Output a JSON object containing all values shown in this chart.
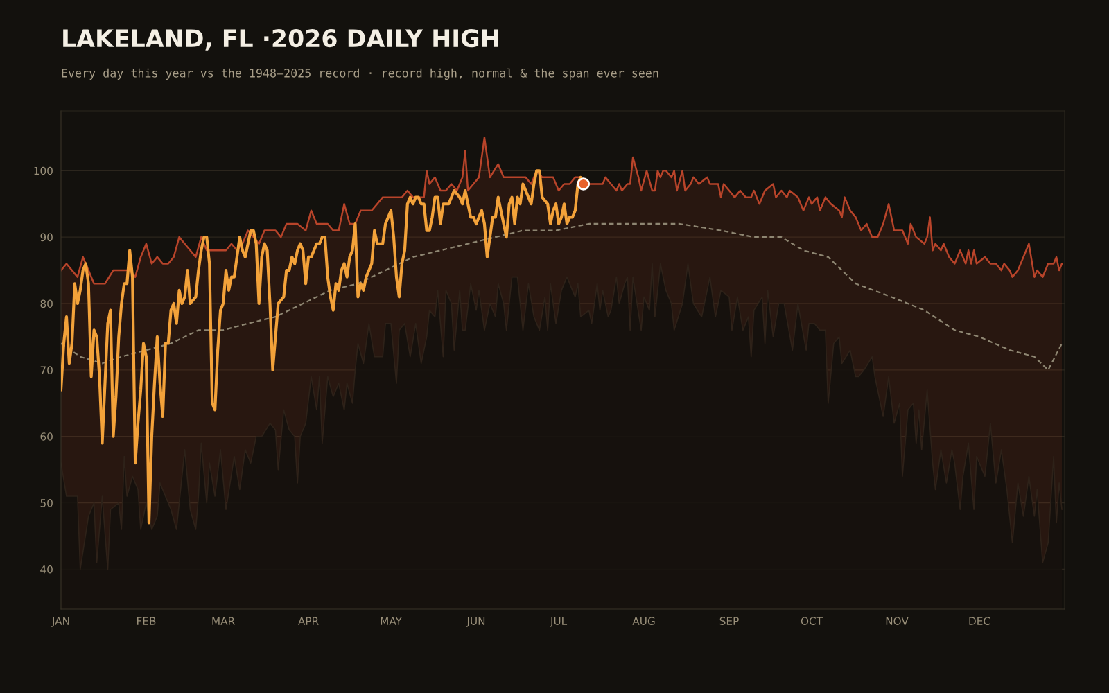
{
  "chart_data": {
    "type": "line",
    "title": "LAKELAND, FL ·2026 DAILY HIGH",
    "subtitle": "Every day this year vs the 1948–2025 record · record high, normal & the span ever seen",
    "xlim": [
      "2026-01-01",
      "2027-01-01"
    ],
    "ylim": [
      34,
      109
    ],
    "xticks": [
      {
        "value": "2026-01-01",
        "label": "JAN"
      },
      {
        "value": "2026-02-01",
        "label": "FEB"
      },
      {
        "value": "2026-03-01",
        "label": "MAR"
      },
      {
        "value": "2026-04-01",
        "label": "APR"
      },
      {
        "value": "2026-05-01",
        "label": "MAY"
      },
      {
        "value": "2026-06-01",
        "label": "JUN"
      },
      {
        "value": "2026-07-01",
        "label": "JUL"
      },
      {
        "value": "2026-08-01",
        "label": "AUG"
      },
      {
        "value": "2026-09-01",
        "label": "SEP"
      },
      {
        "value": "2026-10-01",
        "label": "OCT"
      },
      {
        "value": "2026-11-01",
        "label": "NOV"
      },
      {
        "value": "2026-12-01",
        "label": "DEC"
      }
    ],
    "yticks": [
      40,
      50,
      60,
      70,
      80,
      90,
      100
    ],
    "grid": "y",
    "legend": false,
    "series": [
      {
        "type": "area",
        "color": "#b8442a",
        "x": [
          "2026-01-01",
          "2026-01-03",
          "2026-01-05",
          "2026-01-07",
          "2026-01-09",
          "2026-01-11",
          "2026-01-13",
          "2026-01-15",
          "2026-01-17",
          "2026-01-20",
          "2026-01-22",
          "2026-01-24",
          "2026-01-26",
          "2026-01-28",
          "2026-01-30",
          "2026-02-01",
          "2026-02-03",
          "2026-02-05",
          "2026-02-07",
          "2026-02-09",
          "2026-02-11",
          "2026-02-13",
          "2026-02-15",
          "2026-02-17",
          "2026-02-19",
          "2026-02-21",
          "2026-02-23",
          "2026-02-26",
          "2026-02-28",
          "2026-03-02",
          "2026-03-04",
          "2026-03-06",
          "2026-03-08",
          "2026-03-10",
          "2026-03-12",
          "2026-03-14",
          "2026-03-16",
          "2026-03-18",
          "2026-03-20",
          "2026-03-22",
          "2026-03-24",
          "2026-03-26",
          "2026-03-28",
          "2026-03-31",
          "2026-04-02",
          "2026-04-04",
          "2026-04-06",
          "2026-04-08",
          "2026-04-10",
          "2026-04-12",
          "2026-04-14",
          "2026-04-16",
          "2026-04-18",
          "2026-04-20",
          "2026-04-22",
          "2026-04-24",
          "2026-04-26",
          "2026-04-28",
          "2026-04-30",
          "2026-05-02",
          "2026-05-05",
          "2026-05-07",
          "2026-05-09",
          "2026-05-11",
          "2026-05-13",
          "2026-05-14",
          "2026-05-15",
          "2026-05-17",
          "2026-05-19",
          "2026-05-21",
          "2026-05-23",
          "2026-05-25",
          "2026-05-27",
          "2026-05-28",
          "2026-05-29",
          "2026-05-31",
          "2026-06-02",
          "2026-06-04",
          "2026-06-06",
          "2026-06-09",
          "2026-06-11",
          "2026-06-13",
          "2026-06-15",
          "2026-06-17",
          "2026-06-19",
          "2026-06-21",
          "2026-06-23",
          "2026-06-25",
          "2026-06-27",
          "2026-06-29",
          "2026-07-01",
          "2026-07-03",
          "2026-07-05",
          "2026-07-07",
          "2026-07-09",
          "2026-07-12",
          "2026-07-17",
          "2026-07-18",
          "2026-07-20",
          "2026-07-22",
          "2026-07-23",
          "2026-07-24",
          "2026-07-26",
          "2026-07-27",
          "2026-07-28",
          "2026-07-30",
          "2026-07-31",
          "2026-08-02",
          "2026-08-04",
          "2026-08-05",
          "2026-08-06",
          "2026-08-07",
          "2026-08-08",
          "2026-08-09",
          "2026-08-11",
          "2026-08-12",
          "2026-08-13",
          "2026-08-15",
          "2026-08-16",
          "2026-08-18",
          "2026-08-19",
          "2026-08-21",
          "2026-08-24",
          "2026-08-25",
          "2026-08-28",
          "2026-08-29",
          "2026-08-30",
          "2026-09-01",
          "2026-09-03",
          "2026-09-05",
          "2026-09-07",
          "2026-09-09",
          "2026-09-10",
          "2026-09-12",
          "2026-09-14",
          "2026-09-17",
          "2026-09-18",
          "2026-09-20",
          "2026-09-22",
          "2026-09-23",
          "2026-09-26",
          "2026-09-28",
          "2026-09-30",
          "2026-10-01",
          "2026-10-03",
          "2026-10-04",
          "2026-10-06",
          "2026-10-08",
          "2026-10-11",
          "2026-10-12",
          "2026-10-13",
          "2026-10-15",
          "2026-10-17",
          "2026-10-19",
          "2026-10-21",
          "2026-10-23",
          "2026-10-25",
          "2026-10-27",
          "2026-10-29",
          "2026-10-31",
          "2026-11-03",
          "2026-11-05",
          "2026-11-06",
          "2026-11-08",
          "2026-11-11",
          "2026-11-12",
          "2026-11-13",
          "2026-11-14",
          "2026-11-15",
          "2026-11-17",
          "2026-11-18",
          "2026-11-20",
          "2026-11-22",
          "2026-11-24",
          "2026-11-26",
          "2026-11-27",
          "2026-11-28",
          "2026-11-29",
          "2026-11-30",
          "2026-12-03",
          "2026-12-05",
          "2026-12-07",
          "2026-12-09",
          "2026-12-10",
          "2026-12-12",
          "2026-12-13",
          "2026-12-15",
          "2026-12-17",
          "2026-12-19",
          "2026-12-21",
          "2026-12-22",
          "2026-12-24",
          "2026-12-26",
          "2026-12-28",
          "2026-12-29",
          "2026-12-30",
          "2026-12-31"
        ],
        "values": [
          85,
          86,
          85,
          84,
          87,
          85,
          83,
          83,
          83,
          85,
          85,
          85,
          85,
          84,
          87,
          89,
          86,
          87,
          86,
          86,
          87,
          90,
          89,
          88,
          87,
          90,
          88,
          88,
          88,
          88,
          89,
          88,
          89,
          91,
          90,
          89,
          91,
          91,
          91,
          90,
          92,
          92,
          92,
          91,
          94,
          92,
          92,
          92,
          91,
          91,
          95,
          92,
          92,
          94,
          94,
          94,
          95,
          96,
          96,
          96,
          96,
          97,
          96,
          96,
          96,
          100,
          98,
          99,
          97,
          97,
          98,
          97,
          99,
          103,
          97,
          98,
          99,
          105,
          99,
          101,
          99,
          99,
          99,
          99,
          99,
          98,
          100,
          99,
          99,
          99,
          97,
          98,
          98,
          99,
          99,
          98,
          98,
          99,
          98,
          97,
          98,
          97,
          98,
          98,
          102,
          99,
          97,
          100,
          97,
          97,
          100,
          99,
          100,
          100,
          99,
          100,
          97,
          100,
          97,
          98,
          99,
          98,
          99,
          98,
          98,
          96,
          98,
          97,
          96,
          97,
          96,
          96,
          97,
          95,
          97,
          98,
          96,
          97,
          96,
          97,
          96,
          94,
          96,
          95,
          96,
          94,
          96,
          95,
          94,
          93,
          96,
          94,
          93,
          91,
          92,
          90,
          90,
          92,
          95,
          91,
          91,
          89,
          92,
          90,
          89,
          90,
          93,
          88,
          89,
          88,
          89,
          87,
          86,
          88,
          86,
          88,
          86,
          88,
          86,
          87,
          86,
          86,
          85,
          86,
          85,
          84,
          85,
          87,
          89,
          84,
          85,
          84,
          86,
          86,
          87,
          85,
          86
        ]
      },
      {
        "type": "area",
        "color": "#13110d",
        "x": [
          "2026-01-01",
          "2026-01-03",
          "2026-01-04",
          "2026-01-07",
          "2026-01-08",
          "2026-01-11",
          "2026-01-13",
          "2026-01-14",
          "2026-01-16",
          "2026-01-18",
          "2026-01-19",
          "2026-01-22",
          "2026-01-23",
          "2026-01-24",
          "2026-01-25",
          "2026-01-27",
          "2026-01-29",
          "2026-01-30",
          "2026-02-01",
          "2026-02-03",
          "2026-02-05",
          "2026-02-06",
          "2026-02-09",
          "2026-02-10",
          "2026-02-12",
          "2026-02-15",
          "2026-02-17",
          "2026-02-19",
          "2026-02-20",
          "2026-02-21",
          "2026-02-23",
          "2026-02-24",
          "2026-02-26",
          "2026-02-28",
          "2026-03-02",
          "2026-03-05",
          "2026-03-07",
          "2026-03-09",
          "2026-03-11",
          "2026-03-13",
          "2026-03-15",
          "2026-03-18",
          "2026-03-20",
          "2026-03-21",
          "2026-03-23",
          "2026-03-25",
          "2026-03-27",
          "2026-03-28",
          "2026-03-29",
          "2026-03-31",
          "2026-04-02",
          "2026-04-04",
          "2026-04-05",
          "2026-04-06",
          "2026-04-08",
          "2026-04-10",
          "2026-04-12",
          "2026-04-14",
          "2026-04-15",
          "2026-04-17",
          "2026-04-18",
          "2026-04-19",
          "2026-04-21",
          "2026-04-23",
          "2026-04-25",
          "2026-04-26",
          "2026-04-28",
          "2026-04-29",
          "2026-05-01",
          "2026-05-03",
          "2026-05-04",
          "2026-05-06",
          "2026-05-08",
          "2026-05-10",
          "2026-05-12",
          "2026-05-14",
          "2026-05-15",
          "2026-05-17",
          "2026-05-18",
          "2026-05-20",
          "2026-05-21",
          "2026-05-23",
          "2026-05-24",
          "2026-05-26",
          "2026-05-27",
          "2026-05-28",
          "2026-05-30",
          "2026-06-01",
          "2026-06-02",
          "2026-06-04",
          "2026-06-06",
          "2026-06-08",
          "2026-06-09",
          "2026-06-11",
          "2026-06-12",
          "2026-06-14",
          "2026-06-16",
          "2026-06-18",
          "2026-06-20",
          "2026-06-22",
          "2026-06-24",
          "2026-06-26",
          "2026-06-27",
          "2026-06-28",
          "2026-06-30",
          "2026-07-02",
          "2026-07-04",
          "2026-07-07",
          "2026-07-08",
          "2026-07-09",
          "2026-07-12",
          "2026-07-13",
          "2026-07-15",
          "2026-07-16",
          "2026-07-17",
          "2026-07-19",
          "2026-07-20",
          "2026-07-22",
          "2026-07-23",
          "2026-07-25",
          "2026-07-26",
          "2026-07-27",
          "2026-07-28",
          "2026-07-31",
          "2026-08-01",
          "2026-08-03",
          "2026-08-04",
          "2026-08-05",
          "2026-08-07",
          "2026-08-09",
          "2026-08-11",
          "2026-08-12",
          "2026-08-15",
          "2026-08-17",
          "2026-08-19",
          "2026-08-22",
          "2026-08-25",
          "2026-08-27",
          "2026-08-29",
          "2026-09-01",
          "2026-09-02",
          "2026-09-04",
          "2026-09-06",
          "2026-09-08",
          "2026-09-09",
          "2026-09-10",
          "2026-09-13",
          "2026-09-14",
          "2026-09-15",
          "2026-09-17",
          "2026-09-19",
          "2026-09-21",
          "2026-09-24",
          "2026-09-26",
          "2026-09-29",
          "2026-09-30",
          "2026-10-02",
          "2026-10-04",
          "2026-10-06",
          "2026-10-07",
          "2026-10-09",
          "2026-10-11",
          "2026-10-12",
          "2026-10-15",
          "2026-10-17",
          "2026-10-18",
          "2026-10-20",
          "2026-10-23",
          "2026-10-24",
          "2026-10-27",
          "2026-10-29",
          "2026-10-31",
          "2026-11-02",
          "2026-11-03",
          "2026-11-05",
          "2026-11-07",
          "2026-11-08",
          "2026-11-09",
          "2026-11-10",
          "2026-11-12",
          "2026-11-14",
          "2026-11-15",
          "2026-11-17",
          "2026-11-19",
          "2026-11-21",
          "2026-11-22",
          "2026-11-24",
          "2026-11-25",
          "2026-11-27",
          "2026-11-29",
          "2026-11-30",
          "2026-12-03",
          "2026-12-05",
          "2026-12-07",
          "2026-12-09",
          "2026-12-11",
          "2026-12-13",
          "2026-12-15",
          "2026-12-17",
          "2026-12-19",
          "2026-12-21",
          "2026-12-22",
          "2026-12-24",
          "2026-12-26",
          "2026-12-28",
          "2026-12-29",
          "2026-12-30",
          "2026-12-31"
        ],
        "values": [
          56,
          51,
          51,
          51,
          40,
          48,
          50,
          41,
          51,
          40,
          49,
          50,
          46,
          57,
          51,
          54,
          52,
          46,
          50,
          46,
          48,
          53,
          50,
          49,
          46,
          58,
          49,
          46,
          51,
          59,
          50,
          56,
          51,
          58,
          49,
          57,
          52,
          58,
          56,
          60,
          60,
          62,
          61,
          55,
          64,
          61,
          60,
          53,
          60,
          62,
          69,
          64,
          69,
          59,
          69,
          66,
          68,
          64,
          68,
          65,
          70,
          74,
          71,
          77,
          72,
          72,
          72,
          77,
          77,
          68,
          76,
          77,
          72,
          77,
          71,
          75,
          79,
          78,
          82,
          72,
          82,
          80,
          73,
          82,
          76,
          76,
          83,
          79,
          82,
          76,
          80,
          78,
          83,
          80,
          76,
          84,
          84,
          76,
          83,
          78,
          76,
          81,
          76,
          83,
          77,
          82,
          84,
          81,
          83,
          78,
          79,
          77,
          83,
          79,
          82,
          78,
          79,
          84,
          80,
          83,
          84,
          76,
          84,
          76,
          81,
          79,
          86,
          78,
          86,
          82,
          80,
          76,
          80,
          86,
          80,
          78,
          84,
          78,
          82,
          81,
          76,
          81,
          76,
          78,
          72,
          79,
          81,
          74,
          82,
          75,
          80,
          80,
          73,
          80,
          73,
          77,
          77,
          76,
          76,
          65,
          74,
          75,
          71,
          73,
          69,
          69,
          70,
          72,
          69,
          63,
          69,
          62,
          65,
          54,
          64,
          65,
          59,
          64,
          58,
          67,
          56,
          52,
          58,
          53,
          58,
          56,
          49,
          54,
          59,
          49,
          57,
          54,
          62,
          53,
          58,
          52,
          44,
          53,
          48,
          54,
          48,
          52,
          41,
          44,
          57,
          47,
          53,
          49
        ]
      },
      {
        "color": "#8e8672",
        "line_style": "dashed",
        "x": [
          "2026-01-01",
          "2026-01-08",
          "2026-01-16",
          "2026-01-23",
          "2026-02-01",
          "2026-02-10",
          "2026-02-20",
          "2026-03-01",
          "2026-03-10",
          "2026-03-20",
          "2026-03-30",
          "2026-04-09",
          "2026-04-19",
          "2026-04-29",
          "2026-05-09",
          "2026-05-19",
          "2026-05-29",
          "2026-06-08",
          "2026-06-18",
          "2026-06-30",
          "2026-07-12",
          "2026-07-30",
          "2026-08-14",
          "2026-08-29",
          "2026-09-10",
          "2026-09-20",
          "2026-09-28",
          "2026-10-07",
          "2026-10-17",
          "2026-10-30",
          "2026-11-11",
          "2026-11-22",
          "2026-12-01",
          "2026-12-12",
          "2026-12-21",
          "2026-12-26",
          "2026-12-31"
        ],
        "values": [
          74,
          72,
          71,
          72,
          73,
          74,
          76,
          76,
          77,
          78,
          80,
          82,
          83,
          85,
          87,
          88,
          89,
          90,
          91,
          91,
          92,
          92,
          92,
          91,
          90,
          90,
          88,
          87,
          83,
          81,
          79,
          76,
          75,
          73,
          72,
          70,
          74
        ]
      },
      {
        "color": "#f3a23a",
        "line_style": "solid",
        "x": [
          "2026-01-01",
          "2026-01-02",
          "2026-01-03",
          "2026-01-04",
          "2026-01-05",
          "2026-01-06",
          "2026-01-07",
          "2026-01-08",
          "2026-01-09",
          "2026-01-10",
          "2026-01-11",
          "2026-01-12",
          "2026-01-13",
          "2026-01-14",
          "2026-01-15",
          "2026-01-16",
          "2026-01-18",
          "2026-01-19",
          "2026-01-20",
          "2026-01-21",
          "2026-01-22",
          "2026-01-23",
          "2026-01-24",
          "2026-01-25",
          "2026-01-26",
          "2026-01-27",
          "2026-01-28",
          "2026-01-29",
          "2026-01-30",
          "2026-01-31",
          "2026-02-01",
          "2026-02-02",
          "2026-02-03",
          "2026-02-04",
          "2026-02-05",
          "2026-02-06",
          "2026-02-07",
          "2026-02-08",
          "2026-02-09",
          "2026-02-10",
          "2026-02-11",
          "2026-02-12",
          "2026-02-13",
          "2026-02-14",
          "2026-02-15",
          "2026-02-16",
          "2026-02-17",
          "2026-02-19",
          "2026-02-20",
          "2026-02-21",
          "2026-02-22",
          "2026-02-23",
          "2026-02-24",
          "2026-02-25",
          "2026-02-26",
          "2026-02-27",
          "2026-02-28",
          "2026-03-01",
          "2026-03-02",
          "2026-03-03",
          "2026-03-04",
          "2026-03-05",
          "2026-03-06",
          "2026-03-07",
          "2026-03-08",
          "2026-03-09",
          "2026-03-10",
          "2026-03-11",
          "2026-03-12",
          "2026-03-13",
          "2026-03-14",
          "2026-03-15",
          "2026-03-16",
          "2026-03-17",
          "2026-03-18",
          "2026-03-19",
          "2026-03-20",
          "2026-03-21",
          "2026-03-23",
          "2026-03-24",
          "2026-03-25",
          "2026-03-26",
          "2026-03-27",
          "2026-03-28",
          "2026-03-29",
          "2026-03-30",
          "2026-03-31",
          "2026-04-01",
          "2026-04-02",
          "2026-04-03",
          "2026-04-04",
          "2026-04-05",
          "2026-04-06",
          "2026-04-07",
          "2026-04-08",
          "2026-04-09",
          "2026-04-10",
          "2026-04-11",
          "2026-04-12",
          "2026-04-13",
          "2026-04-14",
          "2026-04-15",
          "2026-04-16",
          "2026-04-17",
          "2026-04-18",
          "2026-04-19",
          "2026-04-20",
          "2026-04-21",
          "2026-04-22",
          "2026-04-24",
          "2026-04-25",
          "2026-04-26",
          "2026-04-27",
          "2026-04-28",
          "2026-04-29",
          "2026-04-30",
          "2026-05-01",
          "2026-05-02",
          "2026-05-03",
          "2026-05-04",
          "2026-05-05",
          "2026-05-06",
          "2026-05-07",
          "2026-05-08",
          "2026-05-09",
          "2026-05-10",
          "2026-05-11",
          "2026-05-12",
          "2026-05-13",
          "2026-05-14",
          "2026-05-15",
          "2026-05-16",
          "2026-05-17",
          "2026-05-18",
          "2026-05-19",
          "2026-05-20",
          "2026-05-21",
          "2026-05-22",
          "2026-05-23",
          "2026-05-24",
          "2026-05-26",
          "2026-05-27",
          "2026-05-28",
          "2026-05-29",
          "2026-05-30",
          "2026-05-31",
          "2026-06-01",
          "2026-06-02",
          "2026-06-03",
          "2026-06-04",
          "2026-06-05",
          "2026-06-06",
          "2026-06-07",
          "2026-06-08",
          "2026-06-09",
          "2026-06-10",
          "2026-06-11",
          "2026-06-12",
          "2026-06-13",
          "2026-06-14",
          "2026-06-15",
          "2026-06-16",
          "2026-06-17",
          "2026-06-18",
          "2026-06-19",
          "2026-06-20",
          "2026-06-21",
          "2026-06-22",
          "2026-06-23",
          "2026-06-24",
          "2026-06-25",
          "2026-06-27",
          "2026-06-28",
          "2026-06-29",
          "2026-06-30",
          "2026-07-01",
          "2026-07-02",
          "2026-07-03",
          "2026-07-04",
          "2026-07-05",
          "2026-07-06",
          "2026-07-07",
          "2026-07-08",
          "2026-07-09",
          "2026-07-10"
        ],
        "values": [
          67,
          74,
          78,
          71,
          74,
          83,
          80,
          82,
          85,
          86,
          83,
          69,
          76,
          75,
          69,
          59,
          77,
          79,
          60,
          66,
          75,
          80,
          83,
          83,
          88,
          84,
          56,
          62,
          67,
          74,
          72,
          47,
          60,
          68,
          75,
          68,
          63,
          74,
          74,
          79,
          80,
          77,
          82,
          80,
          81,
          85,
          80,
          81,
          85,
          88,
          90,
          90,
          86,
          65,
          64,
          73,
          79,
          80,
          85,
          82,
          84,
          84,
          87,
          90,
          88,
          87,
          89,
          91,
          91,
          89,
          80,
          87,
          89,
          88,
          80,
          70,
          75,
          80,
          81,
          85,
          85,
          87,
          86,
          88,
          89,
          88,
          83,
          87,
          87,
          88,
          89,
          89,
          90,
          90,
          84,
          81,
          79,
          83,
          82,
          85,
          86,
          84,
          87,
          88,
          92,
          81,
          83,
          82,
          84,
          86,
          91,
          89,
          89,
          89,
          92,
          93,
          94,
          90,
          84,
          81,
          86,
          88,
          95,
          96,
          95,
          96,
          96,
          95,
          95,
          91,
          91,
          93,
          96,
          96,
          92,
          95,
          95,
          95,
          96,
          97,
          96,
          95,
          97,
          95,
          93,
          93,
          92,
          93,
          94,
          92,
          87,
          90,
          93,
          93,
          96,
          94,
          92,
          90,
          95,
          96,
          92,
          96,
          95,
          98,
          97,
          96,
          95,
          98,
          100,
          100,
          96,
          95,
          92,
          94,
          95,
          92,
          93,
          95,
          92,
          93,
          93,
          94,
          98,
          99,
          98
        ]
      },
      {
        "type": "scatter",
        "color": "#e8622c",
        "marker": "circle",
        "x": [
          "2026-07-10"
        ],
        "values": [
          98
        ]
      }
    ]
  }
}
